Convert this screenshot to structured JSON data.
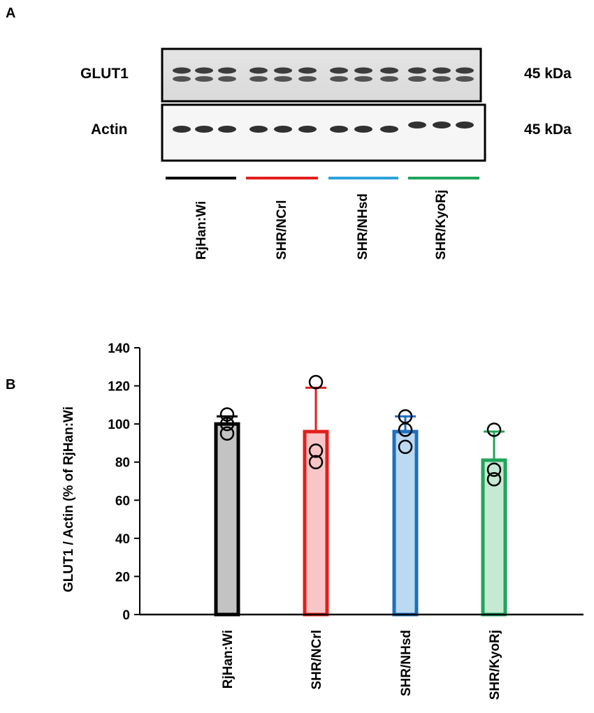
{
  "panel_a": {
    "label": "A",
    "blot_rows": [
      {
        "name": "GLUT1",
        "size": "45 kDa"
      },
      {
        "name": "Actin",
        "size": "45 kDa"
      }
    ],
    "groups": [
      {
        "name": "RjHan:Wi",
        "color": "#000000"
      },
      {
        "name": "SHR/NCrl",
        "color": "#e0201c"
      },
      {
        "name": "SHR/NHsd",
        "color": "#2aa3dc"
      },
      {
        "name": "SHR/KyoRj",
        "color": "#1fa55a"
      }
    ]
  },
  "panel_b": {
    "label": "B"
  },
  "chart_data": {
    "type": "bar",
    "categories": [
      "RjHan:Wi",
      "SHR/NCrl",
      "SHR/NHsd",
      "SHR/KyoRj"
    ],
    "values": [
      100,
      96,
      96,
      81
    ],
    "error_upper": [
      104,
      119,
      104,
      96
    ],
    "points": [
      [
        95,
        100,
        105
      ],
      [
        80,
        86,
        122
      ],
      [
        88,
        97,
        104
      ],
      [
        71,
        76,
        97
      ]
    ],
    "colors": [
      {
        "stroke": "#000000",
        "fill": "#c3c3c3"
      },
      {
        "stroke": "#e0201c",
        "fill": "#f8c6c6"
      },
      {
        "stroke": "#1e6fc0",
        "fill": "#bcd9f2"
      },
      {
        "stroke": "#1fa55a",
        "fill": "#c6e9d2"
      }
    ],
    "ylabel": "GLUT1 / Actin (% of RjHan:Wi",
    "ylim": [
      0,
      140
    ],
    "yticks": [
      0,
      20,
      40,
      60,
      80,
      100,
      120,
      140
    ],
    "grid": false
  }
}
